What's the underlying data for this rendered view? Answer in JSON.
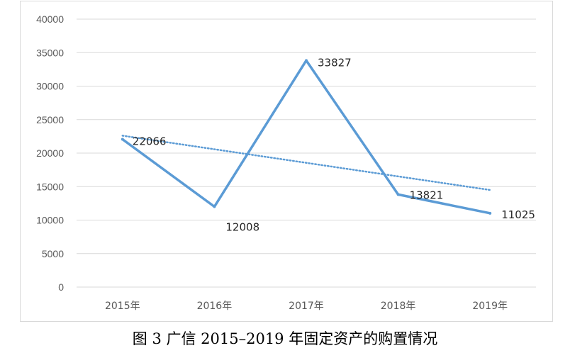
{
  "caption": "图 3 广信 2015–2019 年固定资产的购置情况",
  "chart_data": {
    "type": "line",
    "categories": [
      "2015年",
      "2016年",
      "2017年",
      "2018年",
      "2019年"
    ],
    "series": [
      {
        "values": [
          22066,
          12008,
          33827,
          13821,
          11025
        ],
        "color": "#5b9bd5",
        "data_labels": [
          "22066",
          "12008",
          "33827",
          "13821",
          "11025"
        ]
      }
    ],
    "trendline": {
      "type": "linear",
      "style": "dotted",
      "color": "#5b9bd5"
    },
    "y_ticks": [
      "0",
      "5000",
      "10000",
      "15000",
      "20000",
      "25000",
      "30000",
      "35000",
      "40000"
    ],
    "ylim": [
      0,
      40000
    ],
    "grid": true,
    "legend": "none"
  },
  "colors": {
    "series": "#5b9bd5",
    "grid": "#d9d9d9",
    "text": "#595959"
  }
}
